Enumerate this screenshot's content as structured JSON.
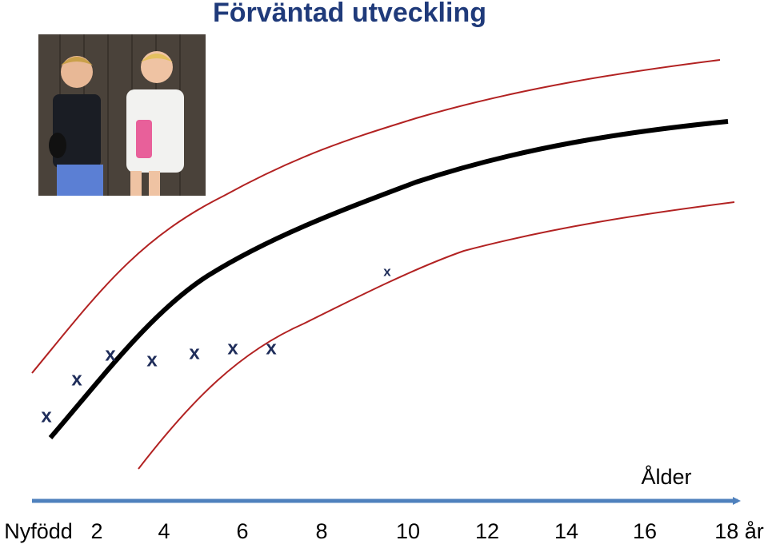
{
  "title": "Förväntad utveckling",
  "axis": {
    "label": "Ålder",
    "ticks": [
      "Nyfödd",
      "2",
      "4",
      "6",
      "8",
      "10",
      "12",
      "14",
      "16",
      "18 år"
    ]
  },
  "markers": [
    "x",
    "x",
    "x",
    "x",
    "x",
    "x",
    "x",
    "x"
  ]
}
